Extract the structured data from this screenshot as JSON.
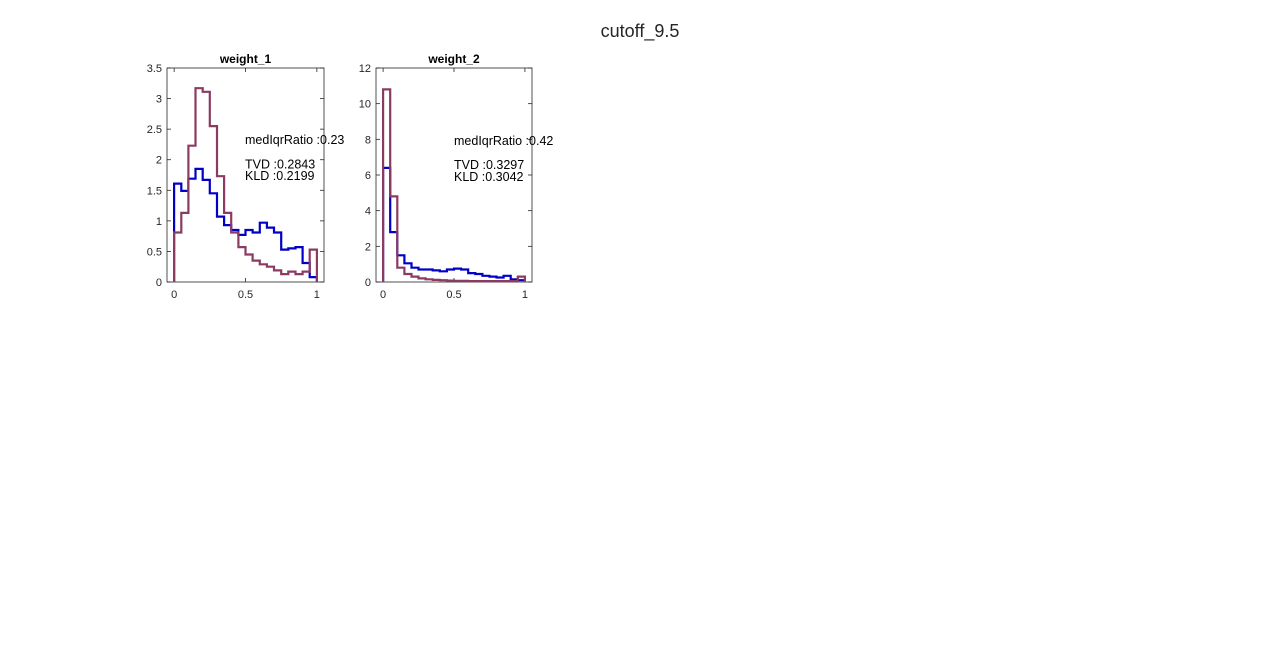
{
  "figure": {
    "title": "cutoff_9.5"
  },
  "colors": {
    "blue": "#0000c8",
    "purple": "#8b3a62",
    "axis": "#262626"
  },
  "chart_data": [
    {
      "type": "line",
      "title": "weight_1",
      "xlabel": "",
      "ylabel": "",
      "xlim": [
        -0.05,
        1.05
      ],
      "ylim": [
        0,
        3.5
      ],
      "xticks": [
        {
          "v": 0,
          "label": "0"
        },
        {
          "v": 0.5,
          "label": "0.5"
        },
        {
          "v": 1,
          "label": "1"
        }
      ],
      "yticks": [
        {
          "v": 0,
          "label": "0"
        },
        {
          "v": 0.5,
          "label": "0.5"
        },
        {
          "v": 1,
          "label": "1"
        },
        {
          "v": 1.5,
          "label": "1.5"
        },
        {
          "v": 2,
          "label": "2"
        },
        {
          "v": 2.5,
          "label": "2.5"
        },
        {
          "v": 3,
          "label": "3"
        },
        {
          "v": 3.5,
          "label": "3.5"
        }
      ],
      "bin_edges": [
        0,
        0.05,
        0.1,
        0.15,
        0.2,
        0.25,
        0.3,
        0.35,
        0.4,
        0.45,
        0.5,
        0.55,
        0.6,
        0.65,
        0.7,
        0.75,
        0.8,
        0.85,
        0.9,
        0.95,
        1.0
      ],
      "series": [
        {
          "color": "blue",
          "values": [
            1.61,
            1.49,
            1.69,
            1.85,
            1.67,
            1.45,
            1.07,
            0.93,
            0.85,
            0.77,
            0.85,
            0.81,
            0.97,
            0.89,
            0.81,
            0.53,
            0.55,
            0.57,
            0.31,
            0.08
          ]
        },
        {
          "color": "purple",
          "values": [
            0.81,
            1.13,
            2.23,
            3.17,
            3.11,
            2.55,
            1.73,
            1.13,
            0.81,
            0.57,
            0.45,
            0.35,
            0.29,
            0.25,
            0.19,
            0.13,
            0.17,
            0.13,
            0.17,
            0.53
          ]
        }
      ],
      "annotations": [
        {
          "text": "medIqrRatio :0.23",
          "y": 2.32
        },
        {
          "text": "TVD :0.2843",
          "y": 1.92
        },
        {
          "text": "KLD :0.2199",
          "y": 1.73
        }
      ],
      "grid": false
    },
    {
      "type": "line",
      "title": "weight_2",
      "xlabel": "",
      "ylabel": "",
      "xlim": [
        -0.05,
        1.05
      ],
      "ylim": [
        0,
        12
      ],
      "xticks": [
        {
          "v": 0,
          "label": "0"
        },
        {
          "v": 0.5,
          "label": "0.5"
        },
        {
          "v": 1,
          "label": "1"
        }
      ],
      "yticks": [
        {
          "v": 0,
          "label": "0"
        },
        {
          "v": 2,
          "label": "2"
        },
        {
          "v": 4,
          "label": "4"
        },
        {
          "v": 6,
          "label": "6"
        },
        {
          "v": 8,
          "label": "8"
        },
        {
          "v": 10,
          "label": "10"
        },
        {
          "v": 12,
          "label": "12"
        }
      ],
      "bin_edges": [
        0,
        0.05,
        0.1,
        0.15,
        0.2,
        0.25,
        0.3,
        0.35,
        0.4,
        0.45,
        0.5,
        0.55,
        0.6,
        0.65,
        0.7,
        0.75,
        0.8,
        0.85,
        0.9,
        0.95,
        1.0
      ],
      "series": [
        {
          "color": "blue",
          "values": [
            6.4,
            2.8,
            1.5,
            1.05,
            0.8,
            0.7,
            0.7,
            0.65,
            0.6,
            0.7,
            0.75,
            0.7,
            0.5,
            0.45,
            0.35,
            0.3,
            0.25,
            0.35,
            0.15,
            0.1
          ]
        },
        {
          "color": "purple",
          "values": [
            10.8,
            4.8,
            0.8,
            0.45,
            0.3,
            0.2,
            0.15,
            0.12,
            0.1,
            0.08,
            0.07,
            0.06,
            0.05,
            0.05,
            0.05,
            0.05,
            0.05,
            0.05,
            0.05,
            0.3
          ]
        }
      ],
      "annotations": [
        {
          "text": "medIqrRatio :0.42",
          "y": 7.9
        },
        {
          "text": "TVD :0.3297",
          "y": 6.55
        },
        {
          "text": "KLD :0.3042",
          "y": 5.9
        }
      ],
      "grid": false
    }
  ]
}
